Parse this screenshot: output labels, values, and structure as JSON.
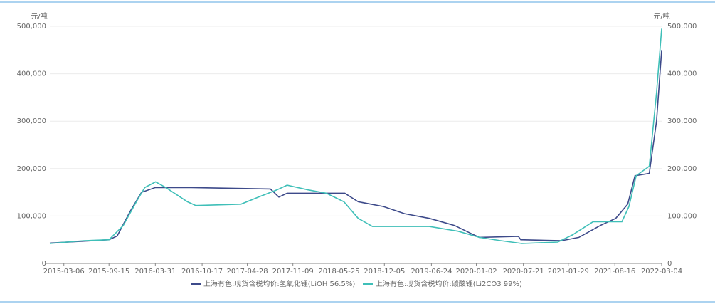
{
  "chart_data": {
    "type": "line",
    "y_label": "元/吨",
    "y2_label": "元/吨",
    "xlim": [
      "2015-01-05",
      "2022-03-04"
    ],
    "xticks": [
      "2015-03-06",
      "2015-09-15",
      "2016-03-31",
      "2016-10-17",
      "2017-04-28",
      "2017-11-09",
      "2018-05-25",
      "2018-12-05",
      "2019-06-24",
      "2020-01-02",
      "2020-07-21",
      "2021-01-29",
      "2021-08-16",
      "2022-03-04"
    ],
    "ylim": [
      0,
      500000
    ],
    "yticks": [
      0,
      {
        "value": 100000,
        "label": "100,000"
      },
      {
        "value": 200000,
        "label": "200,000"
      },
      {
        "value": 300000,
        "label": "300,000"
      },
      {
        "value": 400000,
        "label": "400,000"
      },
      {
        "value": 500000,
        "label": "500,000"
      }
    ],
    "y2lim": [
      0,
      500000
    ],
    "y2ticks": [
      0,
      {
        "value": 100000,
        "label": "100,000"
      },
      {
        "value": 200000,
        "label": "200,000"
      },
      {
        "value": 300000,
        "label": "300,000"
      },
      {
        "value": 400000,
        "label": "400,000"
      },
      {
        "value": 500000,
        "label": "500,000"
      }
    ],
    "grid": true,
    "legend": "bottom",
    "series": [
      {
        "name": "上海有色:现货含税均价:氢氧化锂(LiOH 56.5%)",
        "color": "#3d4a8a",
        "x": [
          "2015-01-05",
          "2015-06-01",
          "2015-09-15",
          "2015-10-20",
          "2015-12-15",
          "2016-02-01",
          "2016-03-31",
          "2016-09-01",
          "2017-08-05",
          "2017-09-10",
          "2017-10-15",
          "2018-06-19",
          "2018-08-15",
          "2018-12-01",
          "2019-03-01",
          "2019-06-15",
          "2019-10-01",
          "2019-12-15",
          "2020-01-15",
          "2020-06-30",
          "2020-07-10",
          "2021-01-01",
          "2021-03-15",
          "2021-06-15",
          "2021-08-20",
          "2021-10-10",
          "2021-11-10",
          "2022-01-10",
          "2022-02-10",
          "2022-03-04"
        ],
        "values": [
          43000,
          47000,
          50000,
          58000,
          110000,
          150000,
          160000,
          160000,
          157000,
          140000,
          148000,
          148000,
          130000,
          120000,
          105000,
          95000,
          80000,
          62000,
          55000,
          57000,
          50000,
          48000,
          55000,
          80000,
          95000,
          125000,
          185000,
          190000,
          300000,
          450000
        ]
      },
      {
        "name": "上海有色:现货含税均价:碳酸锂(Li2CO3 99%)",
        "color": "#3fbfb8",
        "x": [
          "2015-01-05",
          "2015-06-01",
          "2015-09-15",
          "2015-11-15",
          "2016-01-10",
          "2016-02-15",
          "2016-04-01",
          "2016-05-15",
          "2016-08-15",
          "2016-09-20",
          "2017-04-01",
          "2017-06-15",
          "2017-09-01",
          "2017-10-15",
          "2018-01-15",
          "2018-04-01",
          "2018-06-15",
          "2018-08-15",
          "2018-10-15",
          "2019-06-15",
          "2019-10-15",
          "2020-01-15",
          "2020-04-15",
          "2020-07-15",
          "2020-12-15",
          "2021-02-15",
          "2021-05-15",
          "2021-09-15",
          "2021-10-15",
          "2021-11-15",
          "2022-01-10",
          "2022-02-10",
          "2022-03-04"
        ],
        "values": [
          42000,
          48000,
          50000,
          80000,
          130000,
          160000,
          172000,
          160000,
          130000,
          122000,
          125000,
          140000,
          155000,
          165000,
          155000,
          148000,
          130000,
          95000,
          78000,
          78000,
          68000,
          55000,
          48000,
          42000,
          45000,
          60000,
          88000,
          88000,
          120000,
          185000,
          205000,
          360000,
          495000
        ]
      }
    ]
  }
}
